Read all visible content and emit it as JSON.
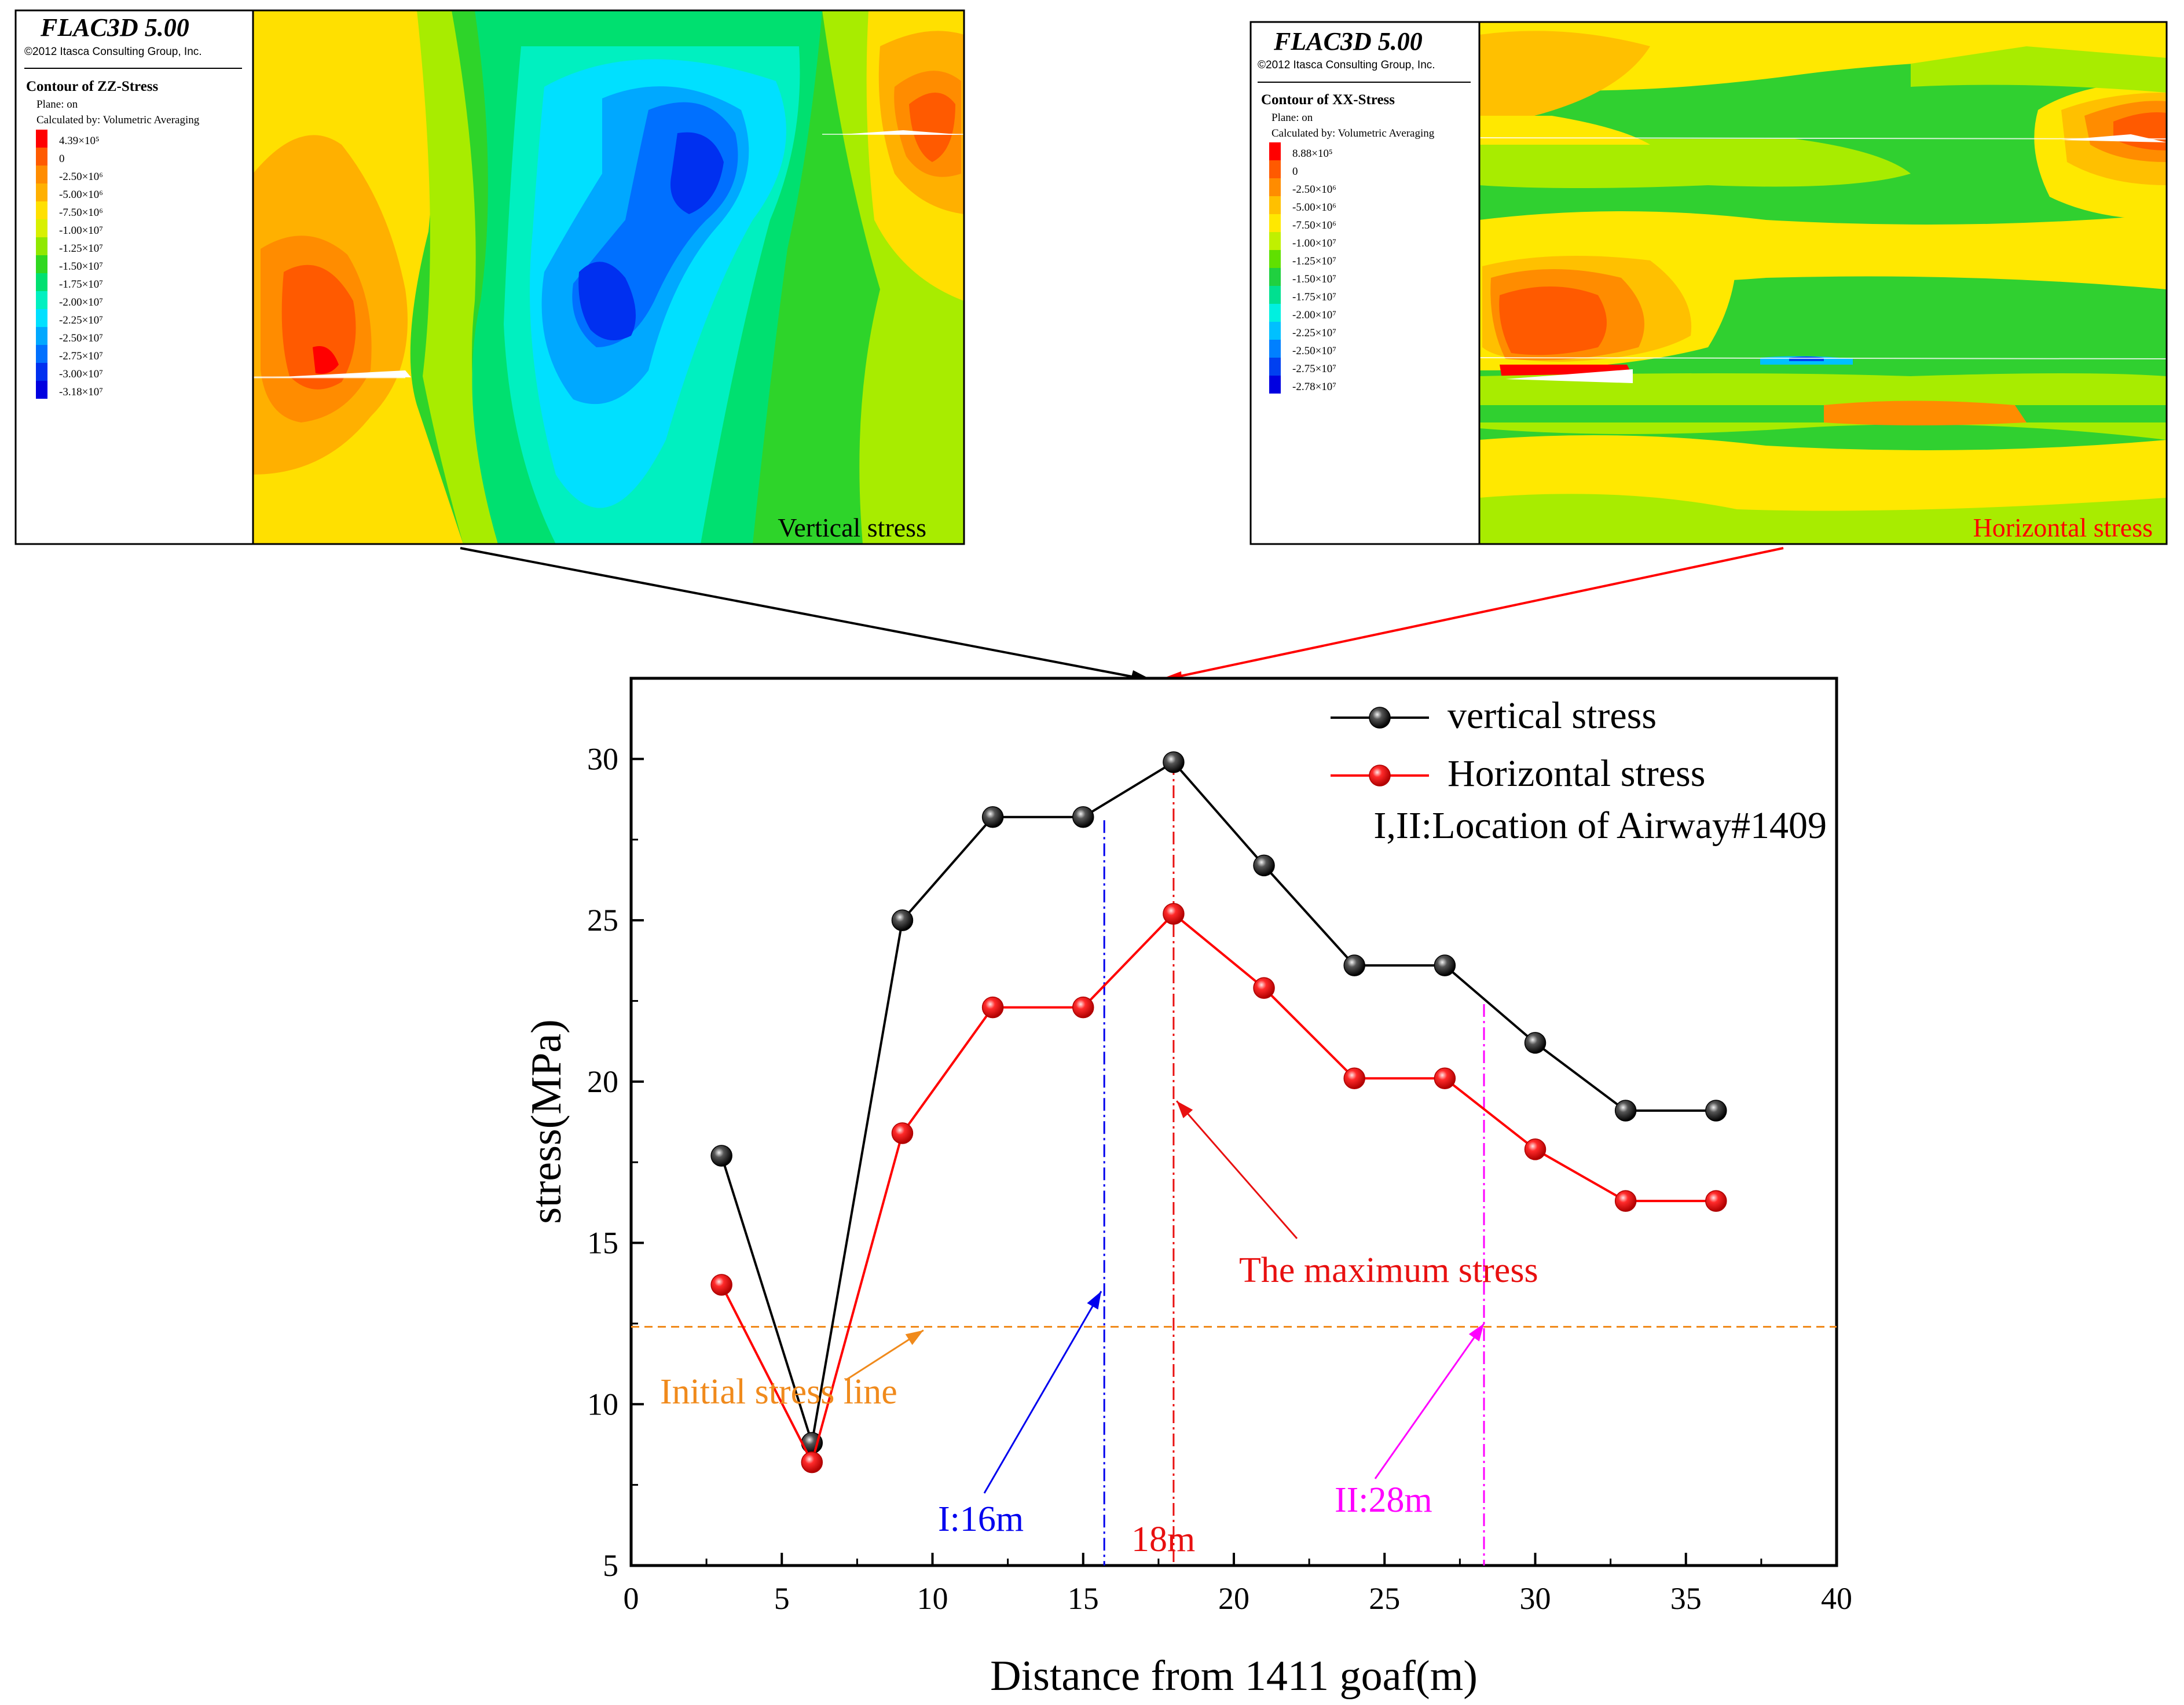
{
  "colors": {
    "vertical": "#000000",
    "horizontal": "#ff0000",
    "initial": "#f08a1c",
    "loc1": "#0000ee",
    "max": "#e81010",
    "loc2": "#ff00ff",
    "arrow_black": "#000000",
    "arrow_red": "#ff0000"
  },
  "contour_left": {
    "software": "FLAC3D 5.00",
    "copyright": "©2012 Itasca Consulting Group, Inc.",
    "title": "Contour of ZZ-Stress",
    "plane": "Plane: on",
    "calc": "Calculated by: Volumetric Averaging",
    "legend": [
      {
        "label": "4.39×10⁵",
        "color": "#ff0000"
      },
      {
        "label": "0",
        "color": "#ff5a00"
      },
      {
        "label": "-2.50×10⁶",
        "color": "#ff8c00"
      },
      {
        "label": "-5.00×10⁶",
        "color": "#ffb000"
      },
      {
        "label": "-7.50×10⁶",
        "color": "#ffe000"
      },
      {
        "label": "-1.00×10⁷",
        "color": "#d8f000"
      },
      {
        "label": "-1.25×10⁷",
        "color": "#90e800"
      },
      {
        "label": "-1.50×10⁷",
        "color": "#30d820"
      },
      {
        "label": "-1.75×10⁷",
        "color": "#00e070"
      },
      {
        "label": "-2.00×10⁷",
        "color": "#00f0c0"
      },
      {
        "label": "-2.25×10⁷",
        "color": "#00e0ff"
      },
      {
        "label": "-2.50×10⁷",
        "color": "#00a8ff"
      },
      {
        "label": "-2.75×10⁷",
        "color": "#0070ff"
      },
      {
        "label": "-3.00×10⁷",
        "color": "#0030f0"
      },
      {
        "label": "-3.18×10⁷",
        "color": "#0000e0"
      }
    ],
    "caption": "Vertical stress"
  },
  "contour_right": {
    "software": "FLAC3D 5.00",
    "copyright": "©2012 Itasca Consulting Group, Inc.",
    "title": "Contour of XX-Stress",
    "plane": "Plane: on",
    "calc": "Calculated by: Volumetric Averaging",
    "legend": [
      {
        "label": "8.88×10⁵",
        "color": "#ff0000"
      },
      {
        "label": "0",
        "color": "#ff5a00"
      },
      {
        "label": "-2.50×10⁶",
        "color": "#ff8c00"
      },
      {
        "label": "-5.00×10⁶",
        "color": "#ffc000"
      },
      {
        "label": "-7.50×10⁶",
        "color": "#ffe800"
      },
      {
        "label": "-1.00×10⁷",
        "color": "#c0f000"
      },
      {
        "label": "-1.25×10⁷",
        "color": "#60e000"
      },
      {
        "label": "-1.50×10⁷",
        "color": "#20d040"
      },
      {
        "label": "-1.75×10⁷",
        "color": "#00e090"
      },
      {
        "label": "-2.00×10⁷",
        "color": "#00f0e0"
      },
      {
        "label": "-2.25×10⁷",
        "color": "#00c0ff"
      },
      {
        "label": "-2.50×10⁷",
        "color": "#0080ff"
      },
      {
        "label": "-2.75×10⁷",
        "color": "#0040f0"
      },
      {
        "label": "-2.78×10⁷",
        "color": "#0000e0"
      }
    ],
    "caption": "Horizontal stress"
  },
  "chart_data": {
    "type": "line",
    "xlabel": "Distance from 1411 goaf(m)",
    "ylabel": "stress(MPa)",
    "xlim": [
      0,
      40
    ],
    "ylim": [
      5,
      32.5
    ],
    "xticks": [
      0,
      5,
      10,
      15,
      20,
      25,
      30,
      35,
      40
    ],
    "yticks": [
      5,
      10,
      15,
      20,
      25,
      30
    ],
    "x": [
      3,
      6,
      9,
      12,
      15,
      18,
      21,
      24,
      27,
      30,
      33,
      36
    ],
    "series": [
      {
        "name": "vertical stress",
        "values": [
          17.7,
          8.8,
          25.0,
          28.2,
          28.2,
          29.9,
          26.7,
          23.6,
          23.6,
          21.2,
          19.1,
          19.1
        ]
      },
      {
        "name": "Horizontal stress",
        "values": [
          13.7,
          8.2,
          18.4,
          22.3,
          22.3,
          25.2,
          22.9,
          20.1,
          20.1,
          17.9,
          16.3,
          16.3
        ]
      }
    ],
    "legend_note": "I,II:Location of Airway#1409",
    "initial_stress": 12.4,
    "initial_stress_label": "Initial stress line",
    "location_I_x": 15.7,
    "location_I_label": "I:16m",
    "max_x": 18,
    "max_label": "18m",
    "max_stress_label": "The maximum stress",
    "location_II_x": 28.3,
    "location_II_label": "II:28m"
  }
}
